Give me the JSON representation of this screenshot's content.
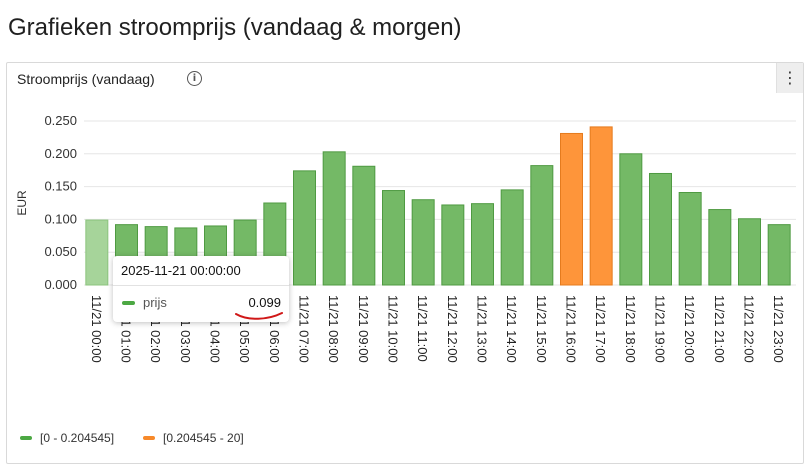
{
  "page": {
    "title": "Grafieken stroomprijs (vandaag & morgen)"
  },
  "panel": {
    "title": "Stroomprijs (vandaag)",
    "info_icon": "info-icon",
    "menu_icon": "more-vert-icon"
  },
  "tooltip": {
    "date": "2025-11-21 00:00:00",
    "series": "prijs",
    "value": "0.099"
  },
  "legend": [
    {
      "label": "[0 - 0.204545]",
      "color": "#4ca843"
    },
    {
      "label": "[0.204545 - 20]",
      "color": "#f7892a"
    }
  ],
  "colors": {
    "green": "#74b966",
    "green_border": "#4f9a42",
    "highlight": "#a6d49a",
    "orange": "#fe953a",
    "orange_border": "#e57b1e"
  },
  "chart_data": {
    "type": "bar",
    "ylabel": "EUR",
    "xlabel": "",
    "ylim": [
      0,
      0.25
    ],
    "yticks": [
      "0.000",
      "0.050",
      "0.100",
      "0.150",
      "0.200",
      "0.250"
    ],
    "threshold": 0.204545,
    "highlighted_index": 0,
    "categories": [
      "11/21 00:00",
      "11/21 01:00",
      "11/21 02:00",
      "11/21 03:00",
      "11/21 04:00",
      "11/21 05:00",
      "11/21 06:00",
      "11/21 07:00",
      "11/21 08:00",
      "11/21 09:00",
      "11/21 10:00",
      "11/21 11:00",
      "11/21 12:00",
      "11/21 13:00",
      "11/21 14:00",
      "11/21 15:00",
      "11/21 16:00",
      "11/21 17:00",
      "11/21 18:00",
      "11/21 19:00",
      "11/21 20:00",
      "11/21 21:00",
      "11/21 22:00",
      "11/21 23:00"
    ],
    "series": [
      {
        "name": "prijs",
        "values": [
          0.099,
          0.092,
          0.089,
          0.087,
          0.09,
          0.099,
          0.125,
          0.174,
          0.203,
          0.181,
          0.144,
          0.13,
          0.122,
          0.124,
          0.145,
          0.182,
          0.231,
          0.241,
          0.2,
          0.17,
          0.141,
          0.115,
          0.101,
          0.092
        ]
      }
    ]
  }
}
